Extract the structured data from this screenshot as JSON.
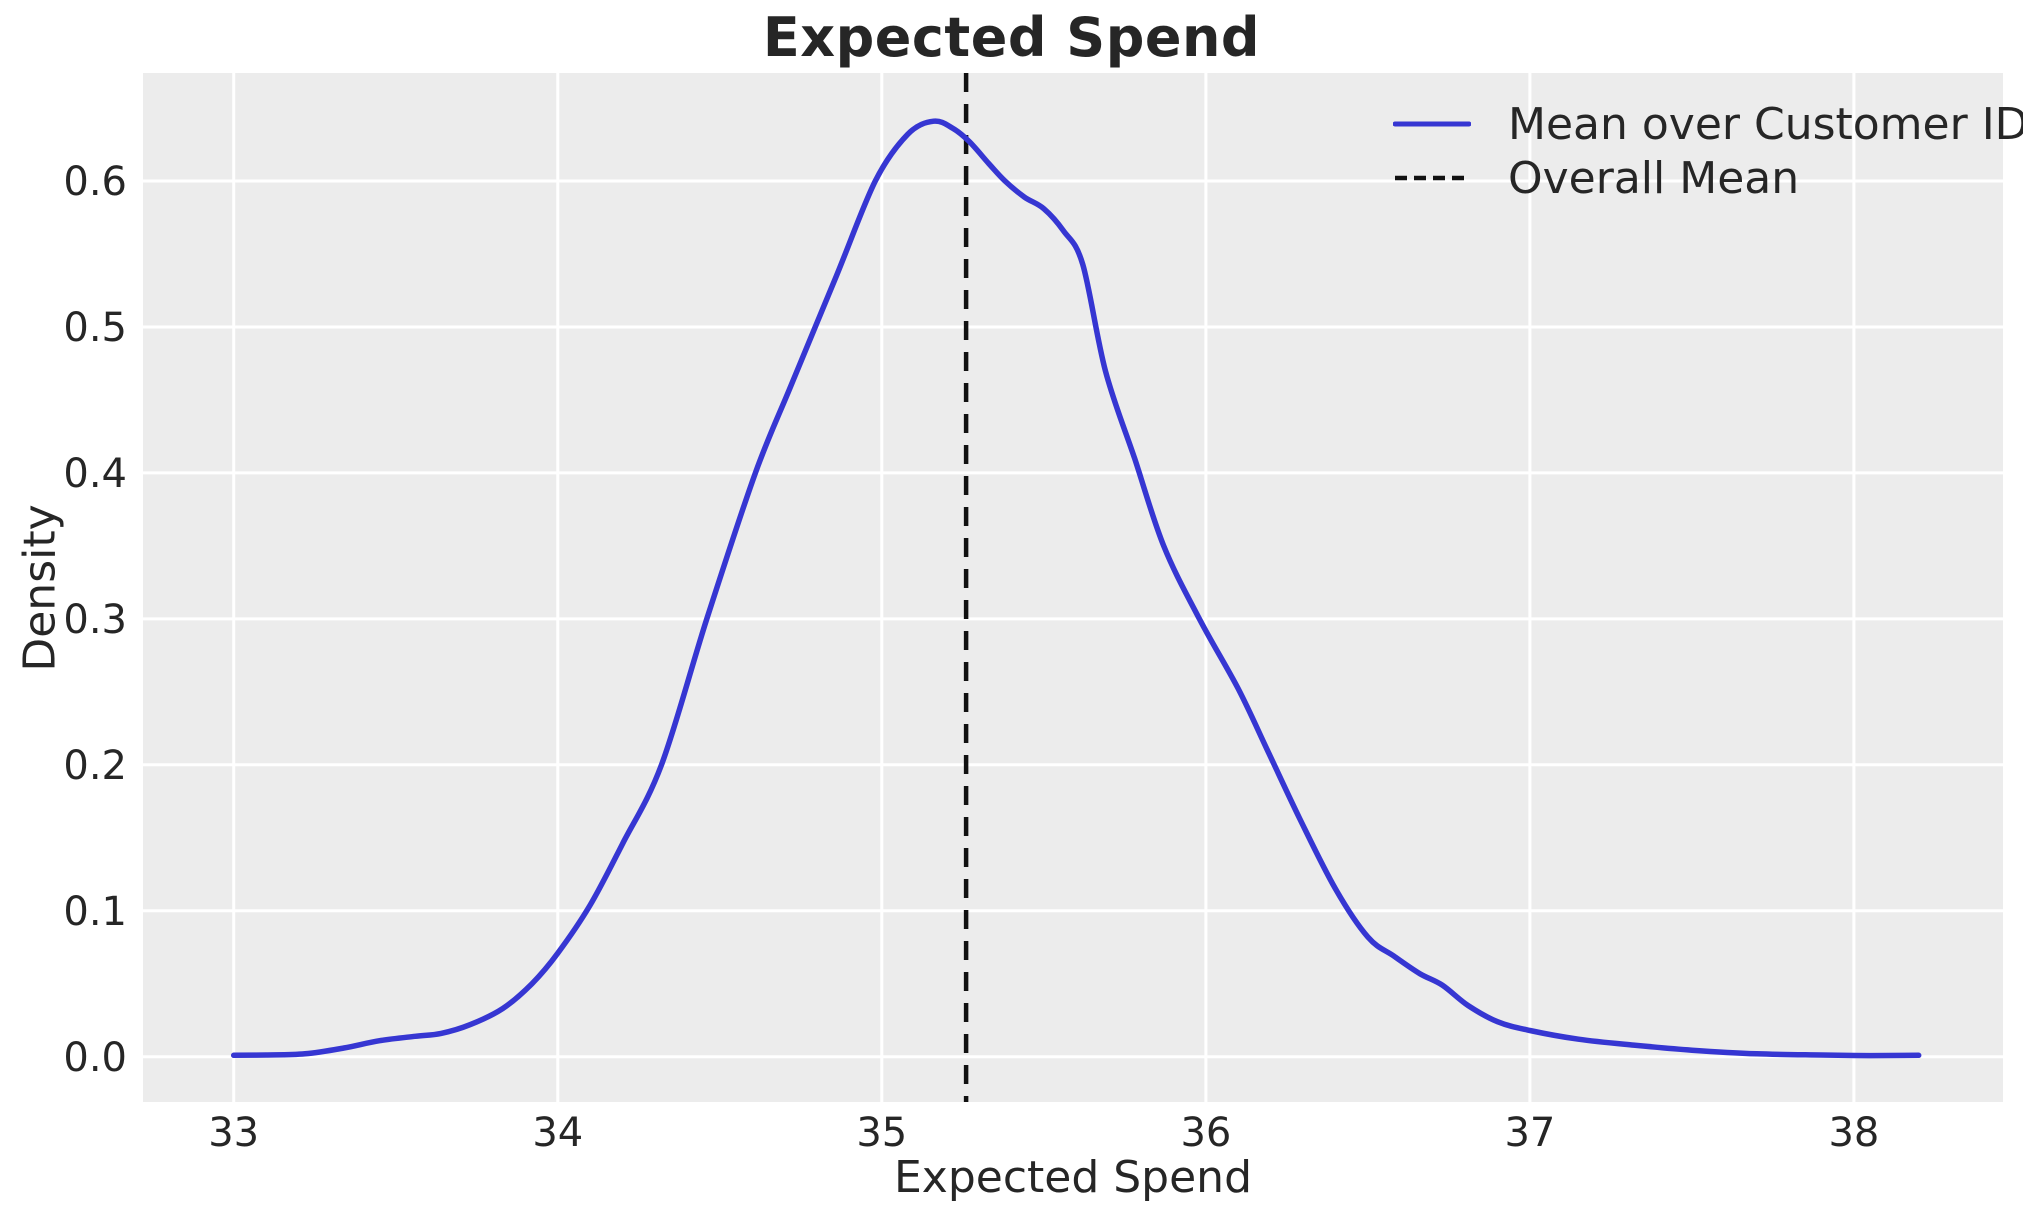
{
  "figure": {
    "background": "#ffffff",
    "text_color": "#262626"
  },
  "chart_data": {
    "type": "line",
    "subtype": "kde-density",
    "title": "Expected Spend",
    "xlabel": "Expected Spend",
    "ylabel": "Density",
    "xlim": [
      32.72,
      38.46
    ],
    "ylim": [
      -0.031,
      0.674
    ],
    "x_ticks": [
      33,
      34,
      35,
      36,
      37,
      38
    ],
    "x_tick_labels": [
      "33",
      "34",
      "35",
      "36",
      "37",
      "38"
    ],
    "y_ticks": [
      0.0,
      0.1,
      0.2,
      0.3,
      0.4,
      0.5,
      0.6
    ],
    "y_tick_labels": [
      "0.0",
      "0.1",
      "0.2",
      "0.3",
      "0.4",
      "0.5",
      "0.6"
    ],
    "grid": true,
    "plot_bg": "#ececec",
    "grid_color": "#ffffff",
    "legend_position": "upper right",
    "series": [
      {
        "name": "Mean over Customer ID",
        "color": "#3636d2",
        "style": "solid",
        "points": [
          [
            33.0,
            0.001
          ],
          [
            33.1,
            0.0012
          ],
          [
            33.22,
            0.002
          ],
          [
            33.34,
            0.006
          ],
          [
            33.45,
            0.011
          ],
          [
            33.56,
            0.014
          ],
          [
            33.64,
            0.016
          ],
          [
            33.73,
            0.022
          ],
          [
            33.83,
            0.033
          ],
          [
            33.92,
            0.05
          ],
          [
            34.0,
            0.071
          ],
          [
            34.1,
            0.104
          ],
          [
            34.2,
            0.146
          ],
          [
            34.32,
            0.2
          ],
          [
            34.46,
            0.3
          ],
          [
            34.61,
            0.4
          ],
          [
            34.72,
            0.46
          ],
          [
            34.86,
            0.535
          ],
          [
            34.98,
            0.6
          ],
          [
            35.08,
            0.632
          ],
          [
            35.16,
            0.641
          ],
          [
            35.22,
            0.636
          ],
          [
            35.27,
            0.627
          ],
          [
            35.33,
            0.612
          ],
          [
            35.38,
            0.6
          ],
          [
            35.44,
            0.589
          ],
          [
            35.5,
            0.581
          ],
          [
            35.56,
            0.566
          ],
          [
            35.62,
            0.543
          ],
          [
            35.69,
            0.47
          ],
          [
            35.78,
            0.41
          ],
          [
            35.87,
            0.35
          ],
          [
            35.98,
            0.3
          ],
          [
            36.1,
            0.252
          ],
          [
            36.19,
            0.21
          ],
          [
            36.29,
            0.163
          ],
          [
            36.4,
            0.115
          ],
          [
            36.5,
            0.082
          ],
          [
            36.58,
            0.069
          ],
          [
            36.66,
            0.057
          ],
          [
            36.73,
            0.049
          ],
          [
            36.81,
            0.035
          ],
          [
            36.9,
            0.024
          ],
          [
            37.0,
            0.018
          ],
          [
            37.15,
            0.012
          ],
          [
            37.32,
            0.008
          ],
          [
            37.5,
            0.0045
          ],
          [
            37.7,
            0.002
          ],
          [
            37.9,
            0.0012
          ],
          [
            38.05,
            0.0008
          ],
          [
            38.2,
            0.001
          ]
        ]
      }
    ],
    "vline": {
      "name": "Overall Mean",
      "x": 35.26,
      "color": "#111111",
      "style": "dashed"
    }
  }
}
